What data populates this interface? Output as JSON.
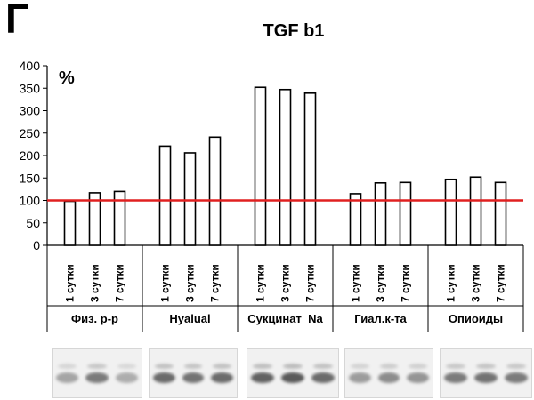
{
  "panel_letter": "Г",
  "chart_data": {
    "type": "bar",
    "title": "TGF b1",
    "ylabel": "%",
    "ylim": [
      0,
      400
    ],
    "yticks": [
      0,
      50,
      100,
      150,
      200,
      250,
      300,
      350,
      400
    ],
    "grid": false,
    "legend": "none",
    "reference_line": {
      "value": 100,
      "color": "#e02020"
    },
    "bar_color": "#ffffff",
    "bar_edge_color": "#000000",
    "groups": [
      {
        "label": "Физ. р-р",
        "bars": [
          {
            "label": "1 сутки",
            "value": 98
          },
          {
            "label": "3 сутки",
            "value": 117
          },
          {
            "label": "7 сутки",
            "value": 120
          }
        ]
      },
      {
        "label": "Hyalual",
        "bars": [
          {
            "label": "1 сутки",
            "value": 221
          },
          {
            "label": "3 сутки",
            "value": 206
          },
          {
            "label": "7 сутки",
            "value": 241
          }
        ]
      },
      {
        "label": "Сукцинат  Na",
        "bars": [
          {
            "label": "1 сутки",
            "value": 352
          },
          {
            "label": "3 сутки",
            "value": 347
          },
          {
            "label": "7 сутки",
            "value": 339
          }
        ]
      },
      {
        "label": "Гиал.к-та",
        "bars": [
          {
            "label": "1 сутки",
            "value": 115
          },
          {
            "label": "3 сутки",
            "value": 139
          },
          {
            "label": "7 сутки",
            "value": 140
          }
        ]
      },
      {
        "label": "Опиоиды",
        "bars": [
          {
            "label": "1 сутки",
            "value": 147
          },
          {
            "label": "3 сутки",
            "value": 152
          },
          {
            "label": "7 сутки",
            "value": 140
          }
        ]
      }
    ]
  },
  "blot_strip": {
    "background": "#f1f1f1",
    "band_color": "#4a4a4a",
    "panels": [
      {
        "bands": [
          {
            "intensity": 0.45
          },
          {
            "intensity": 0.7
          },
          {
            "intensity": 0.4
          }
        ]
      },
      {
        "bands": [
          {
            "intensity": 0.8
          },
          {
            "intensity": 0.75
          },
          {
            "intensity": 0.8
          }
        ]
      },
      {
        "bands": [
          {
            "intensity": 0.85
          },
          {
            "intensity": 0.9
          },
          {
            "intensity": 0.8
          }
        ]
      },
      {
        "bands": [
          {
            "intensity": 0.5
          },
          {
            "intensity": 0.6
          },
          {
            "intensity": 0.55
          }
        ]
      },
      {
        "bands": [
          {
            "intensity": 0.7
          },
          {
            "intensity": 0.75
          },
          {
            "intensity": 0.7
          }
        ]
      }
    ]
  }
}
